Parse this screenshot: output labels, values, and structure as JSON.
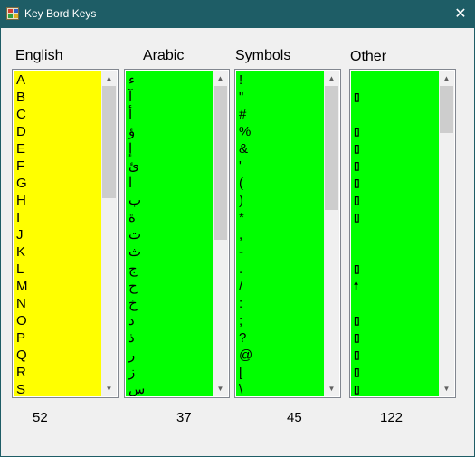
{
  "window": {
    "title": "Key Bord Keys",
    "close_glyph": "✕",
    "icon": "application-icon",
    "title_bar_color": "#1e5d66"
  },
  "columns": [
    {
      "header": "English",
      "count": "52",
      "color": "#ffff00",
      "thumb_fraction": 0.38,
      "thumb_offset": 0,
      "items": [
        "A",
        "B",
        "C",
        "D",
        "E",
        "F",
        "G",
        "H",
        "I",
        "J",
        "K",
        "L",
        "M",
        "N",
        "O",
        "P",
        "Q",
        "R",
        "S"
      ]
    },
    {
      "header": "Arabic",
      "count": "37",
      "color": "#00ff00",
      "thumb_fraction": 0.52,
      "thumb_offset": 0,
      "items": [
        "ء",
        "آ",
        "أ",
        "ؤ",
        "إ",
        "ئ",
        "ا",
        "ب",
        "ة",
        "ت",
        "ث",
        "ج",
        "ح",
        "خ",
        "د",
        "ذ",
        "ر",
        "ز",
        "س"
      ]
    },
    {
      "header": "Symbols",
      "count": "45",
      "color": "#00ff00",
      "thumb_fraction": 0.42,
      "thumb_offset": 0,
      "items": [
        "!",
        "\"",
        "#",
        "%",
        "&",
        "'",
        "(",
        ")",
        "*",
        ",",
        "-",
        ".",
        "/",
        ":",
        ";",
        "?",
        "@",
        "[",
        "\\"
      ]
    },
    {
      "header": "Other",
      "count": "122",
      "color": "#00ff00",
      "thumb_fraction": 0.16,
      "thumb_offset": 0,
      "items": [
        "",
        "▯",
        "",
        "▯",
        "▯",
        "▯",
        "▯",
        "▯",
        "▯",
        "",
        "",
        "▯",
        "🠕",
        "",
        "▯",
        "▯",
        "▯",
        "▯",
        "▯"
      ]
    }
  ],
  "scroll_up_glyph": "▲",
  "scroll_down_glyph": "▼"
}
